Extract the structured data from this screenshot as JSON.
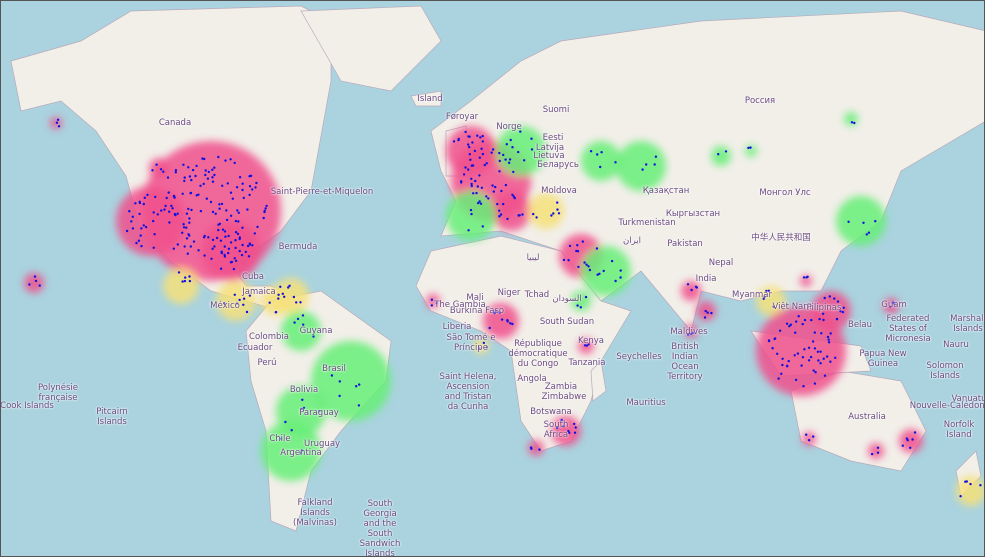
{
  "labels": [
    "Canada",
    "Island",
    "Føroyar",
    "Suomi",
    "Россия",
    "Norge",
    "Eesti",
    "Latvija",
    "Lietuva",
    "Беларусь",
    "Moldova",
    "Қазақстан",
    "Монгол Улс",
    "Кыргызстан",
    "Turkmenistan",
    "Pakistan",
    "ایران",
    "中华人民共和国",
    "Nepal",
    "India",
    "Myanmar",
    "Việt Nam",
    "Pilipinas",
    "Guam",
    "Belau",
    "Federated States of Micronesia",
    "Marshall Islands",
    "Nauru",
    "Papua New Guinea",
    "Solomon Islands",
    "Vanuatu",
    "Nouvelle-Calédonie",
    "Norfolk Island",
    "Australia",
    "Mauritius",
    "Seychelles",
    "British Indian Ocean Territory",
    "Maldives",
    "Kenya",
    "South Sudan",
    "السودان",
    "Tchad",
    "Niger",
    "Mali",
    "Burkina Faso",
    "Liberia",
    "The Gambia",
    "São Tomé e Príncipe",
    "République démocratique du Congo",
    "Tanzania",
    "Angola",
    "Zambia",
    "Zimbabwe",
    "Botswana",
    "South Africa",
    "Saint Helena, Ascension and Tristan da Cunha",
    "ليبيا",
    "Saint-Pierre-et-Miquelon",
    "Bermuda",
    "Cuba",
    "Jamaica",
    "México",
    "Guyana",
    "Colombia",
    "Ecuador",
    "Perú",
    "Brasil",
    "Bolivia",
    "Paraguay",
    "Chile",
    "Argentina",
    "Uruguay",
    "Falkland Islands (Malvinas)",
    "South Georgia and the South Sandwich Islands",
    "Pitcairn Islands",
    "Polynésie française",
    "Cook Islands"
  ]
}
